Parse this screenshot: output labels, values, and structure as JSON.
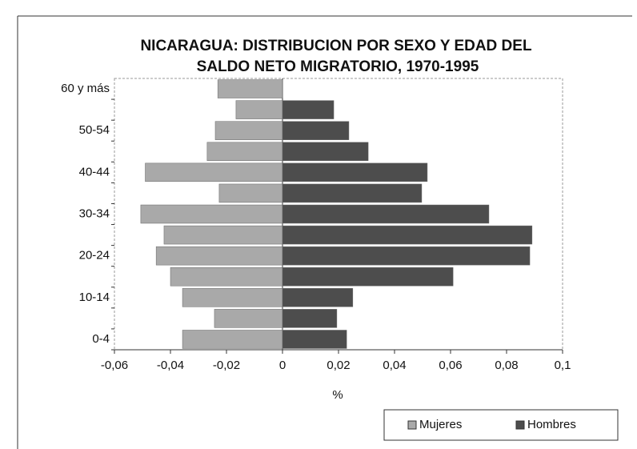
{
  "chart_data": {
    "type": "bar",
    "orientation": "horizontal",
    "title": [
      "NICARAGUA:  DISTRIBUCION POR SEXO Y EDAD DEL",
      "SALDO NETO MIGRATORIO, 1970-1995"
    ],
    "x_label": "%",
    "categories": [
      "0-4",
      null,
      "10-14",
      null,
      "20-24",
      null,
      "30-34",
      null,
      "40-44",
      null,
      "50-54",
      null,
      "60 y más"
    ],
    "series": [
      {
        "name": "Mujeres",
        "color": "#a9a9a9",
        "values": [
          -0.0357,
          -0.0243,
          -0.0357,
          -0.04,
          -0.0451,
          -0.0423,
          -0.0506,
          -0.0226,
          -0.049,
          -0.0269,
          -0.024,
          -0.0166,
          -0.0231
        ]
      },
      {
        "name": "Hombres",
        "color": "#4d4d4d",
        "values": [
          0.0229,
          0.0194,
          0.0251,
          0.0609,
          0.0883,
          0.0891,
          0.0737,
          0.0497,
          0.0517,
          0.0306,
          0.0237,
          0.0183,
          0
        ]
      }
    ],
    "xlim": [
      -0.06,
      0.1
    ],
    "xticks": [
      {
        "value": -0.06,
        "label": "-0,06"
      },
      {
        "value": -0.04,
        "label": "-0,04"
      },
      {
        "value": -0.02,
        "label": "-0,02"
      },
      0,
      {
        "value": 0.02,
        "label": "0,02"
      },
      {
        "value": 0.04,
        "label": "0,04"
      },
      {
        "value": 0.06,
        "label": "0,06"
      },
      {
        "value": 0.08,
        "label": "0,08"
      },
      {
        "value": 0.1,
        "label": "0,1"
      }
    ],
    "stacked": true,
    "legend": "bottom-right"
  }
}
